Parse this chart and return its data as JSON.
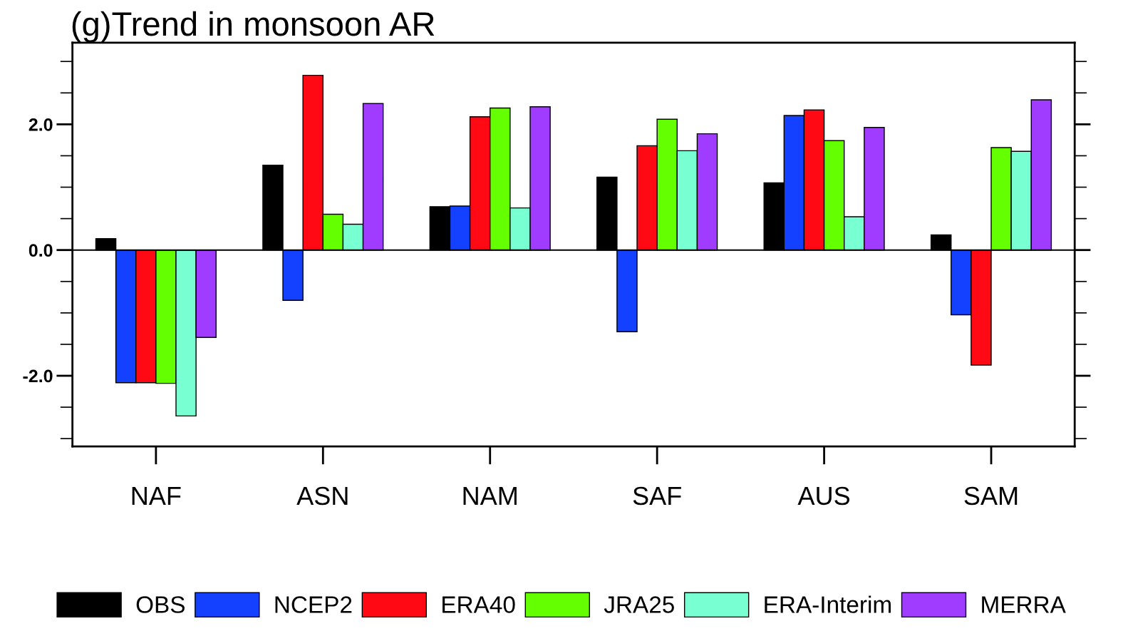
{
  "chart_data": {
    "type": "bar",
    "title": "(g)Trend in monsoon AR",
    "categories": [
      "NAF",
      "ASN",
      "NAM",
      "SAF",
      "AUS",
      "SAM"
    ],
    "series": [
      {
        "name": "OBS",
        "color": "#000000",
        "values": [
          0.18,
          1.35,
          0.69,
          1.16,
          1.07,
          0.24
        ]
      },
      {
        "name": "NCEP2",
        "color": "#1440ff",
        "values": [
          -2.11,
          -0.8,
          0.7,
          -1.3,
          2.14,
          -1.03
        ]
      },
      {
        "name": "ERA40",
        "color": "#ff0a14",
        "values": [
          -2.11,
          2.78,
          2.12,
          1.66,
          2.23,
          -1.83
        ]
      },
      {
        "name": "JRA25",
        "color": "#64ff00",
        "values": [
          -2.12,
          0.57,
          2.26,
          2.08,
          1.74,
          1.63
        ]
      },
      {
        "name": "ERA-Interim",
        "color": "#78ffd2",
        "values": [
          -2.64,
          0.41,
          0.67,
          1.58,
          0.53,
          1.57
        ]
      },
      {
        "name": "MERRA",
        "color": "#a03cff",
        "values": [
          -1.39,
          2.33,
          2.28,
          1.85,
          1.95,
          2.39
        ]
      }
    ],
    "ylim": [
      -3.125,
      3.3
    ],
    "yticks": [
      {
        "value": -3.0,
        "label": null
      },
      {
        "value": -2.5,
        "label": null
      },
      {
        "value": -2.0,
        "label": "-2.0"
      },
      {
        "value": -1.5,
        "label": null
      },
      {
        "value": -1.0,
        "label": null
      },
      {
        "value": -0.5,
        "label": null
      },
      {
        "value": 0.0,
        "label": "0.0"
      },
      {
        "value": 0.5,
        "label": null
      },
      {
        "value": 1.0,
        "label": null
      },
      {
        "value": 1.5,
        "label": null
      },
      {
        "value": 2.0,
        "label": "2.0"
      },
      {
        "value": 2.5,
        "label": null
      },
      {
        "value": 3.0,
        "label": null
      }
    ],
    "ref_lines": [
      {
        "axis": "y",
        "value": 0,
        "color": "#000000"
      }
    ],
    "grid": false,
    "legend": "bottom"
  }
}
